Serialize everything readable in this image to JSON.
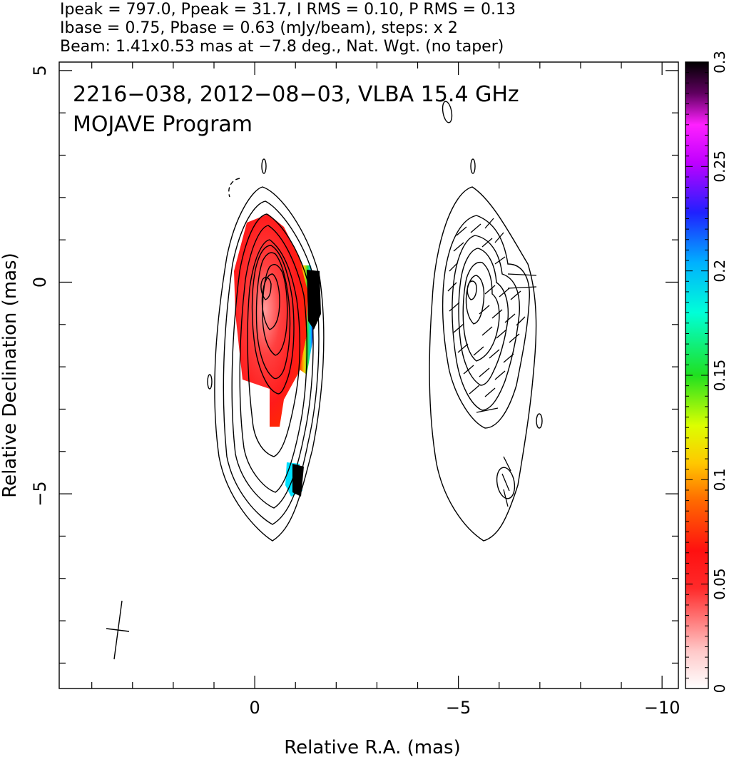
{
  "header": {
    "line1": "Ipeak = 797.0, Ppeak = 31.7, I RMS = 0.10, P RMS = 0.13",
    "line2": "Ibase = 0.75, Pbase = 0.63 (mJy/beam), steps: x 2",
    "line3": "Beam: 1.41x0.53 mas at −7.8 deg., Nat. Wgt. (no taper)"
  },
  "plot_labels": {
    "source_line": "2216−038, 2012−08−03, VLBA 15.4 GHz",
    "program_line": "MOJAVE Program"
  },
  "chart_data": {
    "type": "heatmap",
    "description_panels": [
      "total intensity contours with fractional polarization color map",
      "total intensity contours with EVPA ticks"
    ],
    "xlabel": "Relative R.A. (mas)",
    "ylabel": "Relative Declination (mas)",
    "xlim": [
      4.8,
      -10.4
    ],
    "ylim": [
      -9.6,
      5.2
    ],
    "x_ticks": [
      {
        "value": 0,
        "label": "0"
      },
      {
        "value": -5,
        "label": "−5"
      },
      {
        "value": -10,
        "label": "−10"
      }
    ],
    "y_ticks": [
      {
        "value": 5,
        "label": "5"
      },
      {
        "value": 0,
        "label": "0"
      },
      {
        "value": -5,
        "label": "−5"
      }
    ],
    "colorbar": {
      "range": [
        0,
        0.3
      ],
      "ticks": [
        {
          "value": 0,
          "label": "0"
        },
        {
          "value": 0.05,
          "label": "0.05"
        },
        {
          "value": 0.1,
          "label": "0.1"
        },
        {
          "value": 0.15,
          "label": "0.15"
        },
        {
          "value": 0.2,
          "label": "0.2"
        },
        {
          "value": 0.25,
          "label": "0.25"
        },
        {
          "value": 0.3,
          "label": "0.3"
        }
      ]
    },
    "beam": {
      "major_mas": 1.41,
      "minor_mas": 0.53,
      "pa_deg": -7.8
    },
    "intensity": {
      "peak_mJy_beam": 797.0,
      "base_mJy_beam": 0.75,
      "rms_mJy_beam": 0.1,
      "step_factor": 2
    },
    "polarization": {
      "peak_mJy_beam": 31.7,
      "base_mJy_beam": 0.63,
      "rms_mJy_beam": 0.13
    }
  }
}
